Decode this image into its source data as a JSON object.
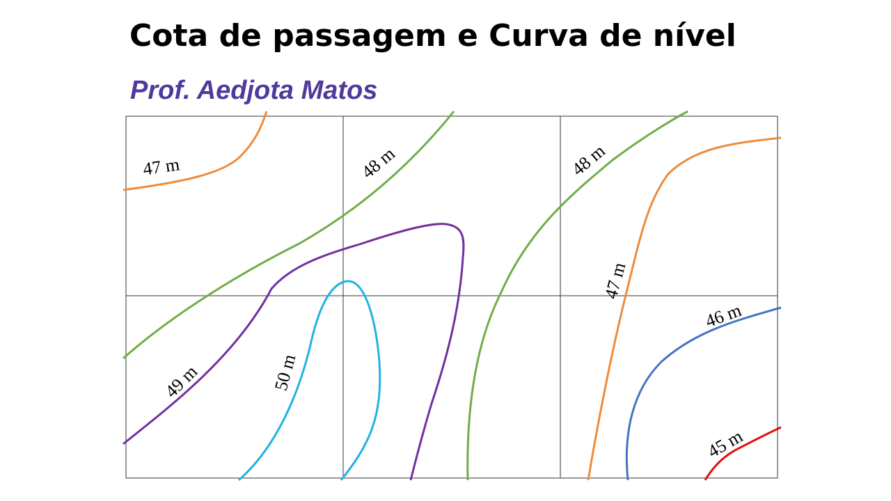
{
  "header": {
    "title": "Cota de passagem e Curva de nível",
    "subtitle": "Prof. Aedjota Matos"
  },
  "contours": [
    {
      "label": "47 m"
    },
    {
      "label": "48 m"
    },
    {
      "label": "49 m"
    },
    {
      "label": "50 m"
    },
    {
      "label": "48 m"
    },
    {
      "label": "47 m"
    },
    {
      "label": "46 m"
    },
    {
      "label": "45 m"
    }
  ]
}
